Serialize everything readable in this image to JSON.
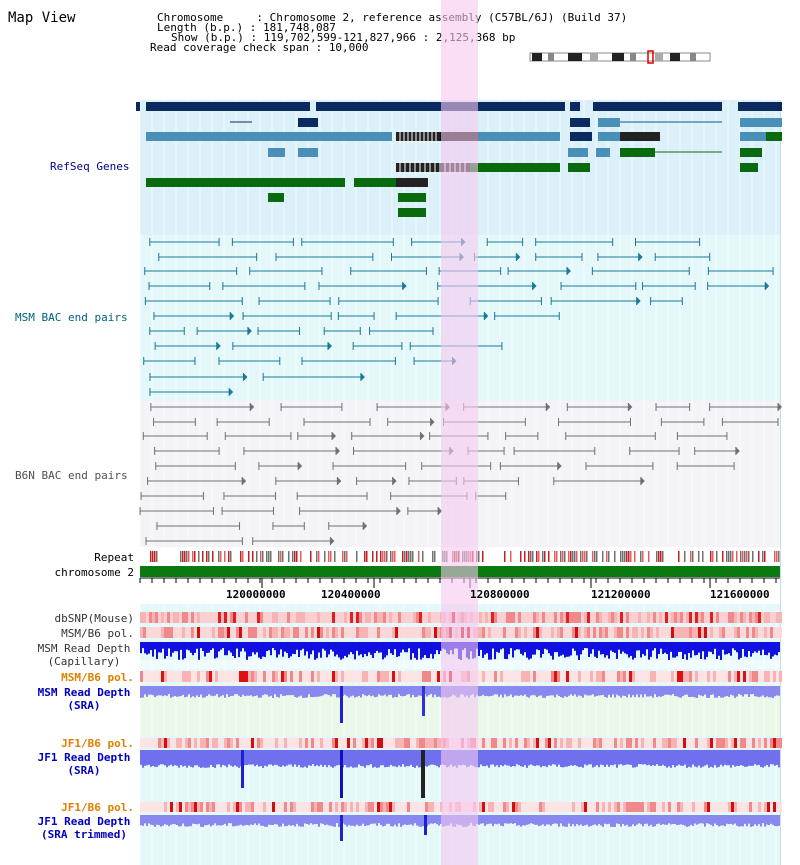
{
  "header": {
    "title": "Map View",
    "chromosome_label": "Chromosome     : ",
    "chromosome_value": "Chromosome 2, reference assembly (C57BL/6J) (Build 37)",
    "length_label": "Length (b.p.) : ",
    "length_value": "181,748,087",
    "show_label": "Show (b.p.) : ",
    "show_value": "119,702,599-121,827,966 : 2,125,368 bp",
    "coverage_label": "Read coverage check span : ",
    "coverage_value": "10,000"
  },
  "tracks": {
    "refseq": "RefSeq Genes",
    "msm_bac": "MSM BAC end pairs",
    "b6n_bac": "B6N BAC end pairs",
    "repeat": "Repeat",
    "chromosome": "chromosome 2",
    "dbsnp": "dbSNP(Mouse)",
    "msm_b6_pol_1": "MSM/B6 pol.",
    "msm_depth_cap_1": "MSM Read Depth",
    "msm_depth_cap_2": "(Capillary)",
    "msm_b6_pol_2": "MSM/B6 pol.",
    "msm_depth_sra_1": "MSM Read Depth",
    "msm_depth_sra_2": "(SRA)",
    "jf1_b6_pol_1": "JF1/B6 pol.",
    "jf1_depth_sra_1": "JF1 Read Depth",
    "jf1_depth_sra_2": "(SRA)",
    "jf1_b6_pol_2": "JF1/B6 pol.",
    "jf1_depth_trim_1": "JF1 Read Depth",
    "jf1_depth_trim_2": "(SRA trimmed)"
  },
  "axis": {
    "ticks": [
      "120000000",
      "120400000",
      "120800000",
      "121200000",
      "121600000"
    ]
  },
  "colors": {
    "refseq_label": "#00008b",
    "msm_bac_label": "#006080",
    "b6n_bac_label": "#505050",
    "pol_label": "#e08000",
    "depth_label": "#0000c0",
    "highlight": "#f5c8f0"
  }
}
